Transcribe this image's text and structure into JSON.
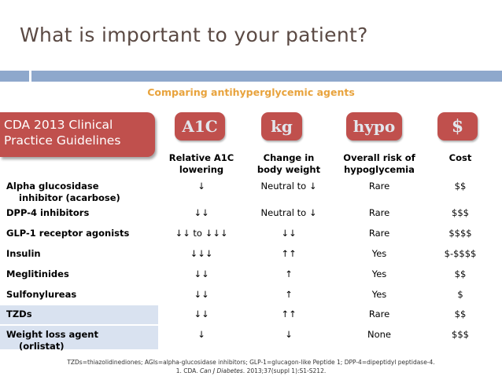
{
  "title": "What is important to your patient?",
  "subtitle": "Comparing antihyperglycemic agents",
  "guideline_box": [
    "CDA 2013 Clinical",
    "Practice Guidelines"
  ],
  "pills": [
    "A1C",
    "kg",
    "hypo",
    "$"
  ],
  "columns": [
    [
      "Relative A1C",
      "lowering"
    ],
    [
      "Change in",
      "body weight"
    ],
    [
      "Overall risk of",
      "hypoglycemia"
    ],
    [
      "Cost"
    ]
  ],
  "rows": [
    {
      "label": [
        "Alpha glucosidase",
        "inhibitor (acarbose)"
      ],
      "a1c": "↓",
      "weight": "Neutral to ↓",
      "hypo": "Rare",
      "cost": "$$"
    },
    {
      "label": [
        "DPP-4 inhibitors"
      ],
      "a1c": "↓↓",
      "weight": "Neutral to ↓",
      "hypo": "Rare",
      "cost": "$$$"
    },
    {
      "label": [
        "GLP-1 receptor agonists"
      ],
      "a1c": "↓↓ to ↓↓↓",
      "weight": "↓↓",
      "hypo": "Rare",
      "cost": "$$$$"
    },
    {
      "label": [
        "Insulin"
      ],
      "a1c": "↓↓↓",
      "weight": "↑↑",
      "hypo": "Yes",
      "cost": "$-$$$$"
    },
    {
      "label": [
        "Meglitinides"
      ],
      "a1c": "↓↓",
      "weight": "↑",
      "hypo": "Yes",
      "cost": "$$"
    },
    {
      "label": [
        "Sulfonylureas"
      ],
      "a1c": "↓↓",
      "weight": "↑",
      "hypo": "Yes",
      "cost": "$"
    },
    {
      "label": [
        "TZDs"
      ],
      "a1c": "↓↓",
      "weight": "↑↑",
      "hypo": "Rare",
      "cost": "$$"
    },
    {
      "label": [
        "Weight loss agent",
        "(orlistat)"
      ],
      "a1c": "↓",
      "weight": "↓",
      "hypo": "None",
      "cost": "$$$"
    }
  ],
  "footnote": {
    "line1": "TZDs=thiazolidinediones; AGIs=alpha-glucosidase inhibitors; GLP-1=glucagon-like Peptide 1; DPP-4=dipeptidyl peptidase-4.",
    "line2_prefix": "1. CDA. ",
    "line2_journal": "Can J Diabetes",
    "line2_suffix": ". 2013;37(suppl 1):S1-S212."
  },
  "colors": {
    "title": "#5b4a44",
    "accent_bar": "#8ea8cc",
    "subtitle": "#e8a33d",
    "brand_red": "#c0504d",
    "row_shade": "#d9e2f0"
  }
}
